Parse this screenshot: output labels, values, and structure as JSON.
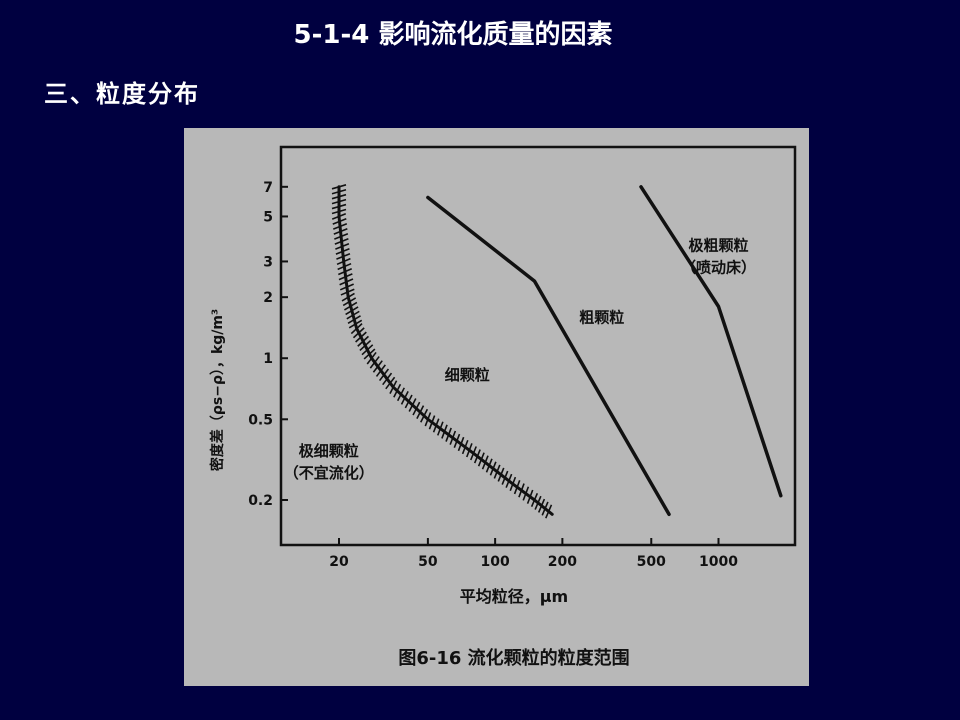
{
  "slide": {
    "title": "5-1-4  影响流化质量的因素",
    "subtitle": "三、粒度分布"
  },
  "figure": {
    "caption": "图6-16   流化颗粒的粒度范围"
  },
  "chart_data": {
    "type": "line",
    "xlabel": "平均粒径，μm",
    "ylabel": "密度差（ρs−ρ），kg/m³",
    "x_scale": "log",
    "y_scale": "log",
    "x_ticks": [
      20,
      50,
      100,
      200,
      500,
      1000
    ],
    "x_tick_labels": [
      "20",
      "50",
      "100",
      "200",
      "500",
      "1000"
    ],
    "y_ticks": [
      0.2,
      0.5,
      1,
      2,
      3,
      5,
      7
    ],
    "y_tick_labels": [
      "0.2",
      "0.5",
      "1",
      "2",
      "3",
      "5",
      "7"
    ],
    "xlim": [
      11,
      2200
    ],
    "ylim": [
      0.12,
      11
    ],
    "grid": false,
    "regions": [
      {
        "label": "极细颗粒",
        "label2": "（不宜流化）",
        "x": 18,
        "y": 0.33
      },
      {
        "label": "细颗粒",
        "x": 75,
        "y": 0.78
      },
      {
        "label": "粗颗粒",
        "x": 300,
        "y": 1.5
      },
      {
        "label": "极粗颗粒",
        "label2": "（喷动床）",
        "x": 1000,
        "y": 3.4
      }
    ],
    "series": [
      {
        "style": "hatched",
        "x": [
          20,
          20,
          21,
          22,
          24,
          28,
          35,
          50,
          80,
          120,
          150,
          180
        ],
        "y": [
          7,
          5,
          3,
          2,
          1.4,
          1,
          0.72,
          0.5,
          0.34,
          0.24,
          0.2,
          0.17
        ]
      },
      {
        "style": "solid",
        "x": [
          50,
          150,
          600
        ],
        "y": [
          6.2,
          2.4,
          0.17
        ]
      },
      {
        "style": "solid",
        "x": [
          450,
          1000,
          1900
        ],
        "y": [
          7,
          1.8,
          0.21
        ]
      }
    ]
  }
}
